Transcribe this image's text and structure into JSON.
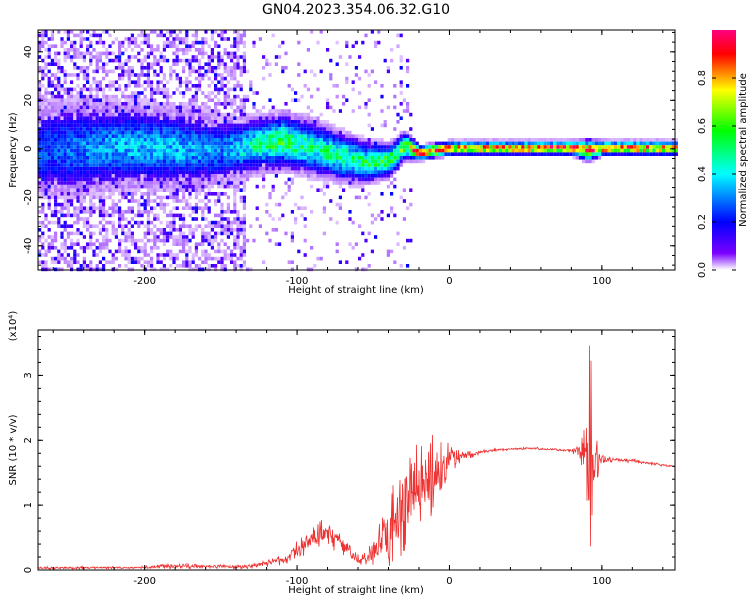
{
  "title": "GN04.2023.354.06.32.G10",
  "chart_data": [
    {
      "type": "heatmap",
      "xlabel": "Height of straight line (km)",
      "ylabel": "Frequency (Hz)",
      "xlim": [
        -270,
        148
      ],
      "ylim": [
        -50,
        49
      ],
      "x_ticks": [
        -200,
        -100,
        0,
        100
      ],
      "y_ticks": [
        -40,
        -20,
        0,
        20,
        40
      ],
      "colorbar": {
        "label": "Normalized spectral amplitude",
        "range": [
          0,
          1
        ],
        "ticks": [
          0.0,
          0.2,
          0.4,
          0.6,
          0.8
        ],
        "colormap": [
          "#ffffff",
          "#7a00ff",
          "#0000ff",
          "#00ffff",
          "#00ff00",
          "#ffff00",
          "#ff0000",
          "#ff0080"
        ]
      },
      "ridge": {
        "x": [
          -270,
          -240,
          -210,
          -180,
          -150,
          -130,
          -110,
          -90,
          -70,
          -55,
          -40,
          -30,
          -20,
          -10,
          0,
          50,
          80,
          90,
          100,
          148
        ],
        "freq": [
          0,
          1,
          2,
          1,
          0,
          2,
          4,
          1,
          -3,
          -5,
          -4,
          2,
          -1,
          0,
          1,
          1,
          1,
          0,
          1,
          1
        ],
        "width": [
          14,
          14,
          12,
          12,
          10,
          8,
          8,
          8,
          7,
          6,
          5,
          4,
          2,
          2,
          2,
          2,
          2,
          3,
          2,
          2
        ],
        "peak": [
          0.25,
          0.3,
          0.35,
          0.35,
          0.3,
          0.45,
          0.55,
          0.45,
          0.5,
          0.5,
          0.55,
          0.6,
          0.95,
          0.95,
          0.8,
          0.85,
          0.9,
          0.95,
          0.9,
          0.85
        ]
      },
      "grid": false
    },
    {
      "type": "line",
      "xlabel": "Height of straight line (km)",
      "ylabel": "SNR (10 * v/v)",
      "yscale_label": "(x10⁴)",
      "xlim": [
        -270,
        148
      ],
      "ylim": [
        0,
        3.7
      ],
      "x_ticks": [
        -200,
        -100,
        0,
        100
      ],
      "y_ticks": [
        0,
        1,
        2,
        3
      ],
      "series": [
        {
          "color": "#ee3333",
          "envelope_x": [
            -270,
            -200,
            -180,
            -130,
            -110,
            -100,
            -90,
            -80,
            -70,
            -60,
            -50,
            -40,
            -30,
            -20,
            -10,
            0,
            10,
            20,
            30,
            50,
            70,
            80,
            85,
            90,
            92,
            94,
            96,
            98,
            100,
            110,
            120,
            130,
            148
          ],
          "envelope_y": [
            0.03,
            0.04,
            0.06,
            0.05,
            0.15,
            0.3,
            0.5,
            0.6,
            0.35,
            0.15,
            0.25,
            0.6,
            1.0,
            1.3,
            1.5,
            1.7,
            1.75,
            1.82,
            1.85,
            1.88,
            1.86,
            1.84,
            1.82,
            1.78,
            1.8,
            1.75,
            1.7,
            1.72,
            1.72,
            1.7,
            1.68,
            1.65,
            1.6
          ],
          "noise": [
            0.02,
            0.02,
            0.04,
            0.03,
            0.08,
            0.15,
            0.2,
            0.25,
            0.15,
            0.1,
            0.2,
            0.55,
            0.8,
            0.8,
            0.6,
            0.25,
            0.08,
            0.03,
            0.02,
            0.02,
            0.02,
            0.03,
            0.1,
            0.6,
            1.9,
            0.9,
            0.5,
            0.2,
            0.08,
            0.04,
            0.03,
            0.02,
            0.02
          ]
        }
      ],
      "grid": false
    }
  ]
}
